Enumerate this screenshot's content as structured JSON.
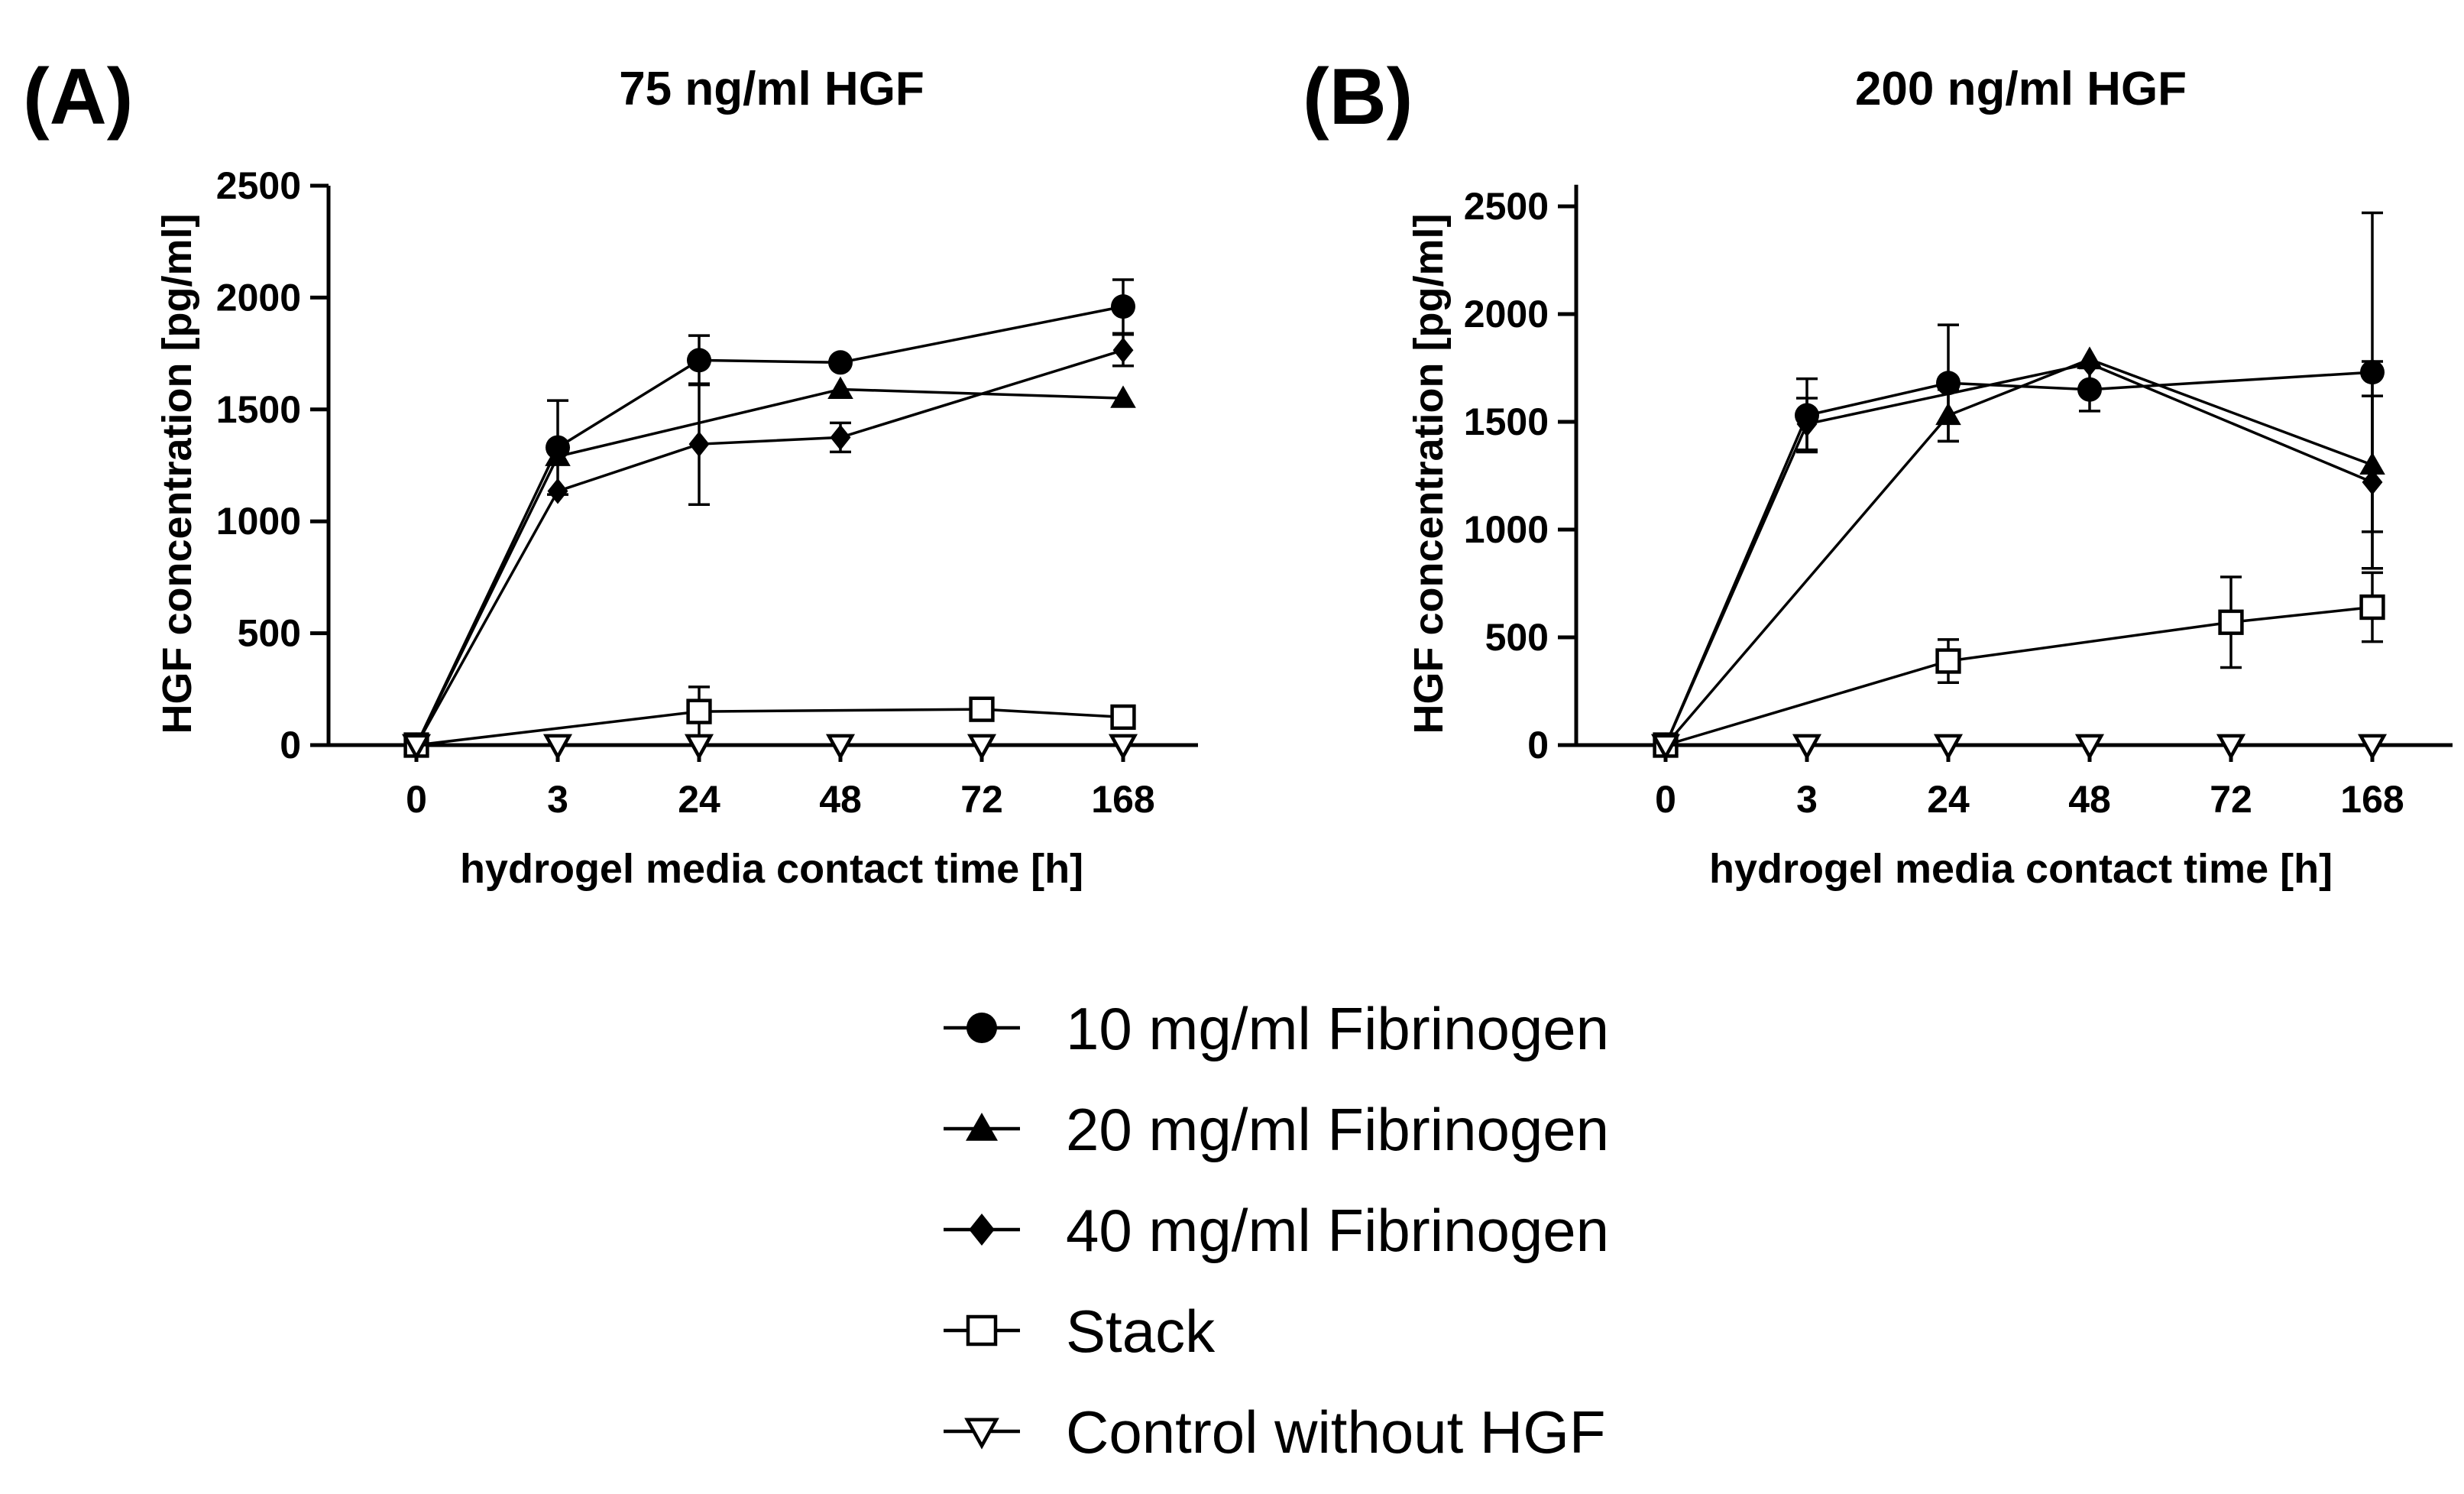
{
  "chart_data": [
    {
      "type": "line",
      "panel_label": "(A)",
      "title": "75 ng/ml HGF",
      "xlabel": "hydrogel media contact time [h]",
      "ylabel": "HGF concentration [pg/ml]",
      "categories": [
        "0",
        "3",
        "24",
        "48",
        "72",
        "168"
      ],
      "ylim": [
        0,
        2500
      ],
      "yticks": [
        "0",
        "500",
        "1000",
        "1500",
        "2000",
        "2500"
      ],
      "series": [
        {
          "name": "10 mg/ml Fibrinogen",
          "marker": "circle",
          "x": [
            0,
            1,
            2,
            3,
            5
          ],
          "values": [
            0,
            1330,
            1720,
            1710,
            1960
          ],
          "err": [
            0,
            210,
            110,
            0,
            120
          ]
        },
        {
          "name": "20 mg/ml Fibrinogen",
          "marker": "triangle",
          "x": [
            0,
            1,
            3,
            5
          ],
          "values": [
            0,
            1290,
            1590,
            1550
          ],
          "err": [
            0,
            0,
            0,
            0
          ]
        },
        {
          "name": "40 mg/ml Fibrinogen",
          "marker": "diamond",
          "x": [
            0,
            1,
            2,
            3,
            5
          ],
          "values": [
            0,
            1135,
            1345,
            1375,
            1765
          ],
          "err": [
            0,
            0,
            270,
            65,
            70
          ]
        },
        {
          "name": "Stack",
          "marker": "square-open",
          "x": [
            0,
            2,
            4,
            5
          ],
          "values": [
            0,
            150,
            160,
            125
          ],
          "err": [
            0,
            110,
            0,
            0
          ]
        },
        {
          "name": "Control without HGF",
          "marker": "triangle-down-open",
          "x": [
            0,
            1,
            2,
            3,
            4,
            5
          ],
          "values": [
            0,
            0,
            0,
            0,
            0,
            0
          ],
          "err": [
            0,
            0,
            0,
            0,
            0,
            0
          ]
        }
      ]
    },
    {
      "type": "line",
      "panel_label": "(B)",
      "title": "200 ng/ml HGF",
      "xlabel": "hydrogel media contact time [h]",
      "ylabel": "HGF concentration [pg/ml]",
      "categories": [
        "0",
        "3",
        "24",
        "48",
        "72",
        "168"
      ],
      "ylim": [
        0,
        2600
      ],
      "yticks": [
        "0",
        "500",
        "1000",
        "1500",
        "2000",
        "2500"
      ],
      "series": [
        {
          "name": "10 mg/ml Fibrinogen",
          "marker": "circle",
          "x": [
            0,
            1,
            2,
            3,
            5
          ],
          "values": [
            0,
            1530,
            1680,
            1650,
            1730
          ],
          "err": [
            0,
            170,
            270,
            100,
            740
          ]
        },
        {
          "name": "20 mg/ml Fibrinogen",
          "marker": "triangle",
          "x": [
            0,
            2,
            3,
            5
          ],
          "values": [
            0,
            1530,
            1790,
            1300
          ],
          "err": [
            0,
            120,
            0,
            480
          ]
        },
        {
          "name": "40 mg/ml Fibrinogen",
          "marker": "diamond",
          "x": [
            0,
            1,
            3,
            5
          ],
          "values": [
            0,
            1490,
            1770,
            1220
          ],
          "err": [
            0,
            120,
            0,
            400
          ]
        },
        {
          "name": "Stack",
          "marker": "square-open",
          "x": [
            0,
            2,
            4,
            5
          ],
          "values": [
            0,
            390,
            570,
            640
          ],
          "err": [
            0,
            100,
            210,
            160
          ]
        },
        {
          "name": "Control without HGF",
          "marker": "triangle-down-open",
          "x": [
            0,
            1,
            2,
            3,
            4,
            5
          ],
          "values": [
            0,
            0,
            0,
            0,
            0,
            0
          ],
          "err": [
            0,
            0,
            0,
            0,
            0,
            0
          ]
        }
      ]
    }
  ],
  "legend": {
    "items": [
      {
        "label": "10 mg/ml Fibrinogen",
        "marker": "circle"
      },
      {
        "label": "20 mg/ml Fibrinogen",
        "marker": "triangle"
      },
      {
        "label": "40 mg/ml Fibrinogen",
        "marker": "diamond"
      },
      {
        "label": "Stack",
        "marker": "square-open"
      },
      {
        "label": "Control without HGF",
        "marker": "triangle-down-open"
      }
    ]
  },
  "colors": {
    "ink": "#000000",
    "background": "#ffffff"
  }
}
